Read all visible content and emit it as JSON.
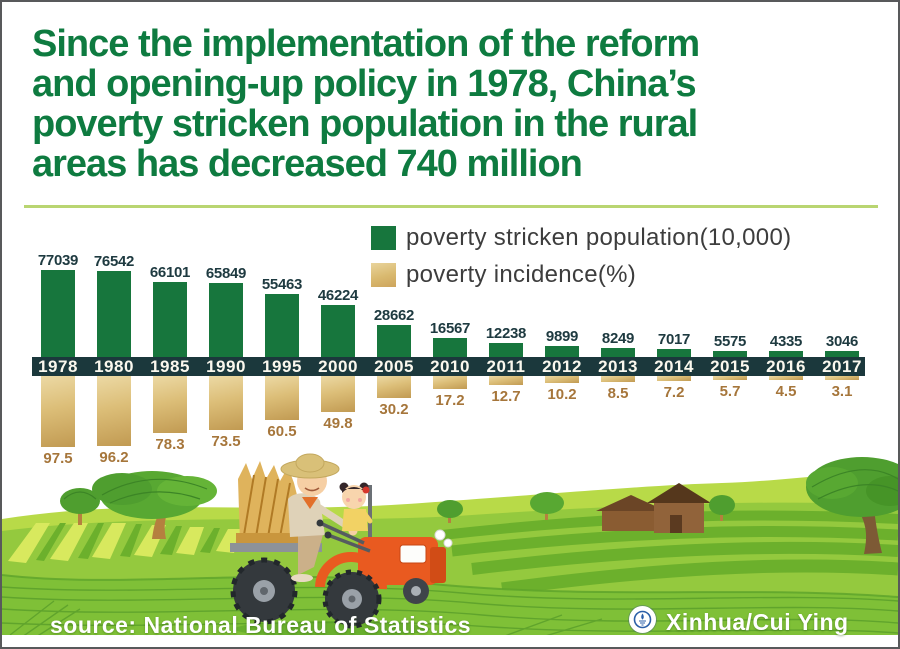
{
  "title": {
    "lines": [
      "Since the implementation of the reform",
      "and opening-up policy in 1978, China’s",
      "poverty stricken population in the rural",
      "areas has decreased 740 million"
    ],
    "color": "#0e7b40"
  },
  "legend": {
    "items": [
      {
        "label": "poverty stricken population(10,000)",
        "swatch_color": "#17763d"
      },
      {
        "label": "poverty incidence(%)",
        "swatch_color": "#ddc17f"
      }
    ]
  },
  "chart_data": {
    "type": "bar",
    "layout": "diverging from central year axis band; population bars point up, incidence bars point down",
    "categories": [
      "1978",
      "1980",
      "1985",
      "1990",
      "1995",
      "2000",
      "2005",
      "2010",
      "2011",
      "2012",
      "2013",
      "2014",
      "2015",
      "2016",
      "2017"
    ],
    "series": [
      {
        "name": "poverty stricken population(10,000)",
        "color": "#17763d",
        "direction": "up",
        "values": [
          77039,
          76542,
          66101,
          65849,
          55463,
          46224,
          28662,
          16567,
          12238,
          9899,
          8249,
          7017,
          5575,
          4335,
          3046
        ]
      },
      {
        "name": "poverty incidence(%)",
        "color": "#ddc17f",
        "direction": "down",
        "values": [
          97.5,
          96.2,
          78.3,
          73.5,
          60.5,
          49.8,
          30.2,
          17.2,
          12.7,
          10.2,
          8.5,
          7.2,
          5.7,
          4.5,
          3.1
        ]
      }
    ],
    "axis_band_color": "#1b383c",
    "grid": false,
    "legend_position": "top-right"
  },
  "footer": {
    "source": "source: National Bureau of Statistics",
    "credit": "Xinhua/Cui Ying",
    "logo": "xinhua-globe-icon"
  },
  "colors": {
    "title_green": "#0e7b40",
    "divider": "#b9d571",
    "bar_green": "#17763d",
    "bar_tan": "#d9b96f",
    "axis_band": "#1b383c",
    "value_label": "#1e3a40",
    "incidence_label": "#a6763b",
    "frame": "#58595b",
    "field_green": "#94c93e"
  }
}
